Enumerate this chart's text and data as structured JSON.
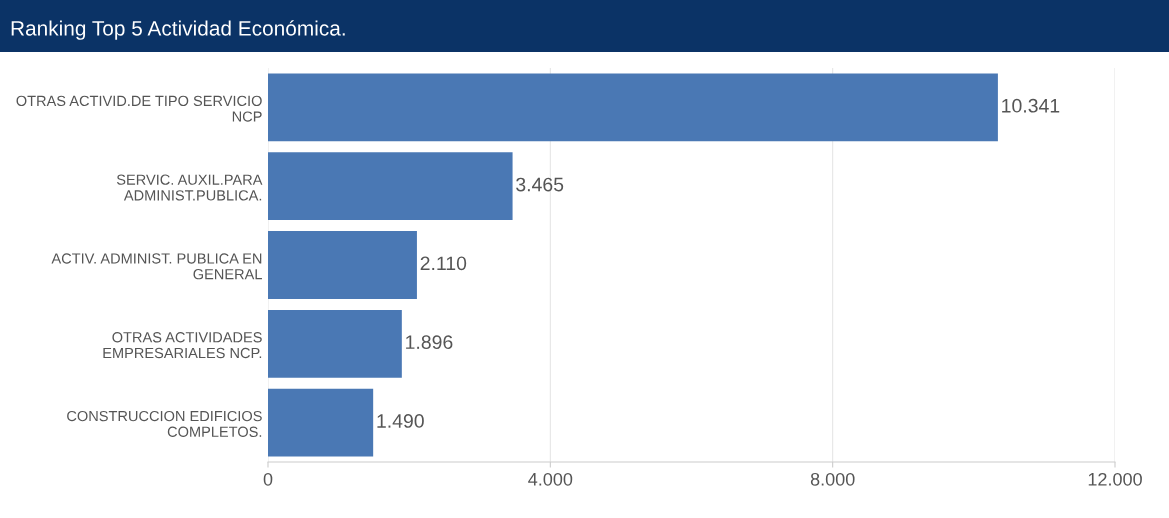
{
  "chart_data": {
    "type": "bar",
    "orientation": "horizontal",
    "title": "Ranking Top 5 Actividad Económica.",
    "categories": [
      "OTRAS ACTIVID.DE TIPO SERVICIO\nNCP",
      "SERVIC. AUXIL.PARA\nADMINIST.PUBLICA.",
      "ACTIV. ADMINIST. PUBLICA EN\nGENERAL",
      "OTRAS ACTIVIDADES\nEMPRESARIALES NCP.",
      "CONSTRUCCION EDIFICIOS\nCOMPLETOS."
    ],
    "values": [
      10341,
      3465,
      2110,
      1896,
      1490
    ],
    "value_labels": [
      "10.341",
      "3.465",
      "2.110",
      "1.896",
      "1.490"
    ],
    "color": "#4a78b4",
    "xlim": [
      0,
      12000
    ],
    "xticks": [
      0,
      {
        "value": 4000,
        "label": "4.000"
      },
      {
        "value": 8000,
        "label": "8.000"
      },
      {
        "value": 12000,
        "label": "12.000"
      }
    ],
    "grid": "x"
  }
}
